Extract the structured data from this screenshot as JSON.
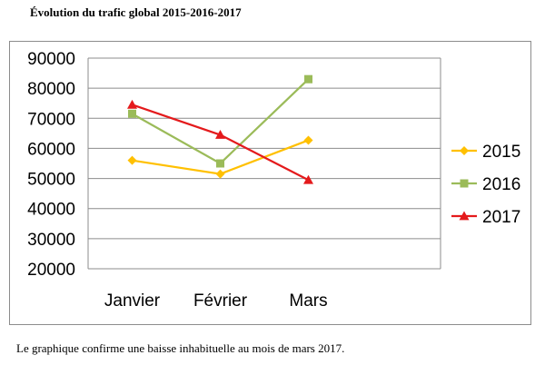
{
  "title": "Évolution du trafic global 2015-2016-2017",
  "caption": "Le graphique confirme une baisse inhabituelle au mois de mars 2017.",
  "chart_data": {
    "type": "line",
    "title": "",
    "xlabel": "",
    "ylabel": "",
    "categories": [
      "Janvier",
      "Février",
      "Mars"
    ],
    "ylim": [
      20000,
      90000
    ],
    "yticks": [
      20000,
      30000,
      40000,
      50000,
      60000,
      70000,
      80000,
      90000
    ],
    "grid": true,
    "legend_position": "right",
    "series": [
      {
        "name": "2015",
        "color": "#ffc000",
        "marker": "diamond",
        "values": [
          56000,
          51500,
          62700
        ]
      },
      {
        "name": "2016",
        "color": "#9bbb59",
        "marker": "square",
        "values": [
          71500,
          55000,
          83000
        ]
      },
      {
        "name": "2017",
        "color": "#e41a1c",
        "marker": "triangle",
        "values": [
          74500,
          64500,
          49500
        ]
      }
    ]
  }
}
